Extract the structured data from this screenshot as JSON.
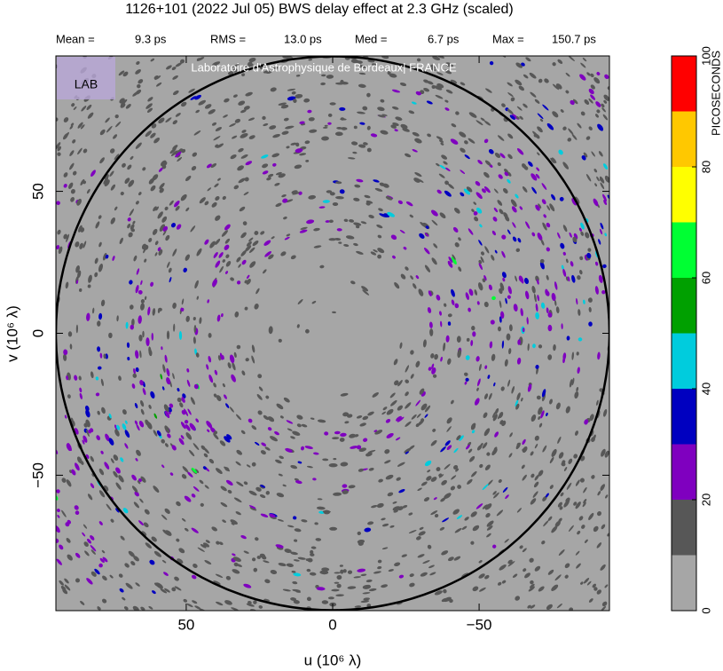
{
  "chart_data": {
    "type": "uv-map",
    "title": "1126+101  (2022 Jul 05)   BWS delay effect at  2.3 GHz (scaled)",
    "stats": [
      {
        "label": "Mean =",
        "value": "9.3 ps"
      },
      {
        "label": "RMS =",
        "value": "13.0 ps"
      },
      {
        "label": "Med =",
        "value": "6.7 ps"
      },
      {
        "label": "Max =",
        "value": "150.7 ps"
      }
    ],
    "watermark": "Laboratoire d'Astrophysique de Bordeaux| FRANCE",
    "logo": "LAB",
    "xlabel": "u  (10⁶ λ)",
    "ylabel": "v  (10⁶ λ)",
    "xlim": [
      94.5,
      -94.5
    ],
    "ylim": [
      -97.7,
      97.7
    ],
    "xticks": [
      50,
      0,
      {
        "value": -50,
        "label": "−50"
      }
    ],
    "yticks": [
      {
        "value": -50,
        "label": "−50"
      },
      0,
      50
    ],
    "uv_circle_radius": 94.5,
    "background": "#a6a6a6",
    "colorbar": {
      "label": "PICOSECONDS",
      "bins": [
        0,
        10,
        20,
        30,
        40,
        50,
        60,
        70,
        80,
        90,
        100
      ],
      "colors": [
        "#a6a6a6",
        "#575757",
        "#7f00bf",
        "#0000c0",
        "#00ccdd",
        "#00a000",
        "#00ff33",
        "#ffff00",
        "#ffc800",
        "#ff0000"
      ],
      "ticks": [
        0,
        20,
        40,
        60,
        80,
        100
      ]
    }
  }
}
